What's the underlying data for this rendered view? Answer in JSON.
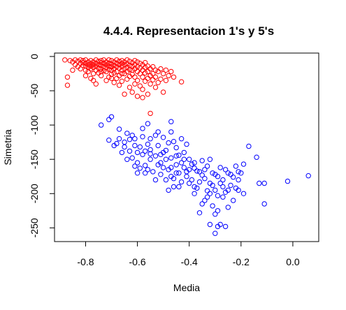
{
  "chart_data": {
    "type": "scatter",
    "title": "4.4.4. Representacion 1's y 5's",
    "xlabel": "Media",
    "ylabel": "Simetria",
    "xlim": [
      -0.92,
      0.1
    ],
    "ylim": [
      -270,
      5
    ],
    "xticks": [
      -0.8,
      -0.6,
      -0.4,
      -0.2,
      0.0
    ],
    "xtick_labels": [
      "-0.8",
      "-0.6",
      "-0.4",
      "-0.2",
      "0.0"
    ],
    "yticks": [
      0,
      -50,
      -100,
      -150,
      -200,
      -250
    ],
    "ytick_labels": [
      "0",
      "-50",
      "-100",
      "-150",
      "-200",
      "-250"
    ],
    "grid": false,
    "series": [
      {
        "color": "#ff0000",
        "marker": "open-circle",
        "points": [
          [
            -0.88,
            -5
          ],
          [
            -0.87,
            -30
          ],
          [
            -0.87,
            -42
          ],
          [
            -0.86,
            -6
          ],
          [
            -0.85,
            -8
          ],
          [
            -0.85,
            -20
          ],
          [
            -0.84,
            -5
          ],
          [
            -0.84,
            -12
          ],
          [
            -0.83,
            -7
          ],
          [
            -0.83,
            -15
          ],
          [
            -0.82,
            -5
          ],
          [
            -0.82,
            -10
          ],
          [
            -0.82,
            -18
          ],
          [
            -0.81,
            -6
          ],
          [
            -0.81,
            -9
          ],
          [
            -0.81,
            -13
          ],
          [
            -0.8,
            -5
          ],
          [
            -0.8,
            -10
          ],
          [
            -0.8,
            -20
          ],
          [
            -0.8,
            -28
          ],
          [
            -0.79,
            -8
          ],
          [
            -0.79,
            -12
          ],
          [
            -0.79,
            -16
          ],
          [
            -0.79,
            -22
          ],
          [
            -0.78,
            -6
          ],
          [
            -0.78,
            -10
          ],
          [
            -0.78,
            -14
          ],
          [
            -0.78,
            -18
          ],
          [
            -0.78,
            -32
          ],
          [
            -0.77,
            -8
          ],
          [
            -0.77,
            -12
          ],
          [
            -0.77,
            -16
          ],
          [
            -0.77,
            -25
          ],
          [
            -0.77,
            -35
          ],
          [
            -0.76,
            -5
          ],
          [
            -0.76,
            -10
          ],
          [
            -0.76,
            -14
          ],
          [
            -0.76,
            -20
          ],
          [
            -0.76,
            -40
          ],
          [
            -0.75,
            -7
          ],
          [
            -0.75,
            -12
          ],
          [
            -0.75,
            -17
          ],
          [
            -0.75,
            -24
          ],
          [
            -0.74,
            -6
          ],
          [
            -0.74,
            -9
          ],
          [
            -0.74,
            -13
          ],
          [
            -0.74,
            -18
          ],
          [
            -0.74,
            -28
          ],
          [
            -0.73,
            -5
          ],
          [
            -0.73,
            -10
          ],
          [
            -0.73,
            -15
          ],
          [
            -0.73,
            -21
          ],
          [
            -0.72,
            -8
          ],
          [
            -0.72,
            -12
          ],
          [
            -0.72,
            -16
          ],
          [
            -0.72,
            -22
          ],
          [
            -0.72,
            -35
          ],
          [
            -0.71,
            -5
          ],
          [
            -0.71,
            -10
          ],
          [
            -0.71,
            -14
          ],
          [
            -0.71,
            -19
          ],
          [
            -0.71,
            -30
          ],
          [
            -0.7,
            -6
          ],
          [
            -0.7,
            -11
          ],
          [
            -0.7,
            -15
          ],
          [
            -0.7,
            -20
          ],
          [
            -0.7,
            -26
          ],
          [
            -0.69,
            -8
          ],
          [
            -0.69,
            -13
          ],
          [
            -0.69,
            -18
          ],
          [
            -0.69,
            -24
          ],
          [
            -0.69,
            -38
          ],
          [
            -0.68,
            -5
          ],
          [
            -0.68,
            -10
          ],
          [
            -0.68,
            -15
          ],
          [
            -0.68,
            -22
          ],
          [
            -0.68,
            -32
          ],
          [
            -0.67,
            -7
          ],
          [
            -0.67,
            -12
          ],
          [
            -0.67,
            -17
          ],
          [
            -0.67,
            -28
          ],
          [
            -0.67,
            -42
          ],
          [
            -0.66,
            -6
          ],
          [
            -0.66,
            -10
          ],
          [
            -0.66,
            -14
          ],
          [
            -0.66,
            -20
          ],
          [
            -0.66,
            -36
          ],
          [
            -0.65,
            -8
          ],
          [
            -0.65,
            -12
          ],
          [
            -0.65,
            -18
          ],
          [
            -0.65,
            -25
          ],
          [
            -0.65,
            -55
          ],
          [
            -0.64,
            -5
          ],
          [
            -0.64,
            -11
          ],
          [
            -0.64,
            -16
          ],
          [
            -0.64,
            -22
          ],
          [
            -0.64,
            -33
          ],
          [
            -0.63,
            -7
          ],
          [
            -0.63,
            -13
          ],
          [
            -0.63,
            -19
          ],
          [
            -0.63,
            -29
          ],
          [
            -0.63,
            -45
          ],
          [
            -0.62,
            -9
          ],
          [
            -0.62,
            -14
          ],
          [
            -0.62,
            -20
          ],
          [
            -0.62,
            -26
          ],
          [
            -0.62,
            -52
          ],
          [
            -0.61,
            -6
          ],
          [
            -0.61,
            -12
          ],
          [
            -0.61,
            -18
          ],
          [
            -0.61,
            -30
          ],
          [
            -0.61,
            -40
          ],
          [
            -0.6,
            -8
          ],
          [
            -0.6,
            -15
          ],
          [
            -0.6,
            -22
          ],
          [
            -0.6,
            -35
          ],
          [
            -0.6,
            -58
          ],
          [
            -0.59,
            -10
          ],
          [
            -0.59,
            -17
          ],
          [
            -0.59,
            -25
          ],
          [
            -0.59,
            -43
          ],
          [
            -0.58,
            -12
          ],
          [
            -0.58,
            -20
          ],
          [
            -0.58,
            -30
          ],
          [
            -0.58,
            -48
          ],
          [
            -0.57,
            -9
          ],
          [
            -0.57,
            -16
          ],
          [
            -0.57,
            -24
          ],
          [
            -0.57,
            -36
          ],
          [
            -0.56,
            -14
          ],
          [
            -0.56,
            -22
          ],
          [
            -0.56,
            -32
          ],
          [
            -0.56,
            -55
          ],
          [
            -0.55,
            -18
          ],
          [
            -0.55,
            -28
          ],
          [
            -0.55,
            -40
          ],
          [
            -0.54,
            -15
          ],
          [
            -0.54,
            -25
          ],
          [
            -0.54,
            -34
          ],
          [
            -0.53,
            -20
          ],
          [
            -0.53,
            -30
          ],
          [
            -0.53,
            -45
          ],
          [
            -0.52,
            -22
          ],
          [
            -0.52,
            -38
          ],
          [
            -0.51,
            -18
          ],
          [
            -0.51,
            -33
          ],
          [
            -0.5,
            -25
          ],
          [
            -0.5,
            -52
          ],
          [
            -0.49,
            -20
          ],
          [
            -0.49,
            -35
          ],
          [
            -0.48,
            -28
          ],
          [
            -0.47,
            -22
          ],
          [
            -0.46,
            -30
          ],
          [
            -0.43,
            -37
          ],
          [
            -0.55,
            -83
          ],
          [
            -0.58,
            -60
          ],
          [
            -0.66,
            -25
          ],
          [
            -0.74,
            -22
          ],
          [
            -0.8,
            -14
          ],
          [
            -0.7,
            -32
          ]
        ]
      },
      {
        "color": "#0000ff",
        "marker": "open-circle",
        "points": [
          [
            -0.7,
            -88
          ],
          [
            -0.71,
            -92
          ],
          [
            -0.74,
            -100
          ],
          [
            -0.67,
            -106
          ],
          [
            -0.64,
            -112
          ],
          [
            -0.56,
            -98
          ],
          [
            -0.52,
            -110
          ],
          [
            -0.47,
            -95
          ],
          [
            -0.71,
            -122
          ],
          [
            -0.68,
            -127
          ],
          [
            -0.65,
            -125
          ],
          [
            -0.63,
            -121
          ],
          [
            -0.61,
            -130
          ],
          [
            -0.6,
            -140
          ],
          [
            -0.58,
            -117
          ],
          [
            -0.56,
            -128
          ],
          [
            -0.55,
            -136
          ],
          [
            -0.53,
            -115
          ],
          [
            -0.52,
            -130
          ],
          [
            -0.51,
            -143
          ],
          [
            -0.5,
            -118
          ],
          [
            -0.49,
            -137
          ],
          [
            -0.48,
            -126
          ],
          [
            -0.47,
            -148
          ],
          [
            -0.46,
            -124
          ],
          [
            -0.45,
            -133
          ],
          [
            -0.44,
            -144
          ],
          [
            -0.43,
            -120
          ],
          [
            -0.42,
            -140
          ],
          [
            -0.41,
            -128
          ],
          [
            -0.66,
            -140
          ],
          [
            -0.62,
            -148
          ],
          [
            -0.6,
            -155
          ],
          [
            -0.58,
            -143
          ],
          [
            -0.57,
            -159
          ],
          [
            -0.55,
            -150
          ],
          [
            -0.54,
            -168
          ],
          [
            -0.52,
            -158
          ],
          [
            -0.51,
            -172
          ],
          [
            -0.5,
            -162
          ],
          [
            -0.49,
            -180
          ],
          [
            -0.48,
            -165
          ],
          [
            -0.47,
            -175
          ],
          [
            -0.46,
            -190
          ],
          [
            -0.45,
            -158
          ],
          [
            -0.44,
            -170
          ],
          [
            -0.43,
            -183
          ],
          [
            -0.42,
            -162
          ],
          [
            -0.41,
            -175
          ],
          [
            -0.4,
            -150
          ],
          [
            -0.39,
            -180
          ],
          [
            -0.38,
            -163
          ],
          [
            -0.37,
            -192
          ],
          [
            -0.36,
            -168
          ],
          [
            -0.35,
            -152
          ],
          [
            -0.34,
            -178
          ],
          [
            -0.33,
            -160
          ],
          [
            -0.32,
            -185
          ],
          [
            -0.31,
            -170
          ],
          [
            -0.3,
            -195
          ],
          [
            -0.29,
            -175
          ],
          [
            -0.28,
            -162
          ],
          [
            -0.27,
            -180
          ],
          [
            -0.26,
            -198
          ],
          [
            -0.25,
            -170
          ],
          [
            -0.24,
            -188
          ],
          [
            -0.23,
            -176
          ],
          [
            -0.22,
            -192
          ],
          [
            -0.21,
            -180
          ],
          [
            -0.2,
            -170
          ],
          [
            -0.19,
            -200
          ],
          [
            -0.17,
            -131
          ],
          [
            -0.14,
            -147
          ],
          [
            -0.13,
            -185
          ],
          [
            -0.11,
            -185
          ],
          [
            -0.11,
            -215
          ],
          [
            -0.02,
            -182
          ],
          [
            0.06,
            -174
          ],
          [
            -0.19,
            -157
          ],
          [
            -0.21,
            -168
          ],
          [
            -0.28,
            -245
          ],
          [
            -0.3,
            -258
          ],
          [
            -0.29,
            -248
          ],
          [
            -0.32,
            -245
          ],
          [
            -0.26,
            -248
          ],
          [
            -0.3,
            -230
          ],
          [
            -0.29,
            -225
          ],
          [
            -0.35,
            -215
          ],
          [
            -0.33,
            -205
          ],
          [
            -0.38,
            -200
          ],
          [
            -0.38,
            -190
          ],
          [
            -0.27,
            -205
          ],
          [
            -0.25,
            -220
          ],
          [
            -0.31,
            -218
          ],
          [
            -0.36,
            -228
          ],
          [
            -0.34,
            -210
          ],
          [
            -0.32,
            -200
          ],
          [
            -0.4,
            -185
          ],
          [
            -0.46,
            -178
          ],
          [
            -0.44,
            -190
          ],
          [
            -0.53,
            -180
          ],
          [
            -0.57,
            -170
          ],
          [
            -0.59,
            -163
          ],
          [
            -0.61,
            -160
          ],
          [
            -0.64,
            -150
          ],
          [
            -0.69,
            -130
          ],
          [
            -0.67,
            -120
          ],
          [
            -0.62,
            -115
          ],
          [
            -0.58,
            -105
          ],
          [
            -0.55,
            -120
          ],
          [
            -0.5,
            -140
          ],
          [
            -0.47,
            -110
          ],
          [
            -0.45,
            -145
          ],
          [
            -0.42,
            -150
          ],
          [
            -0.4,
            -165
          ],
          [
            -0.38,
            -155
          ],
          [
            -0.36,
            -183
          ],
          [
            -0.34,
            -165
          ],
          [
            -0.32,
            -150
          ],
          [
            -0.3,
            -172
          ],
          [
            -0.28,
            -185
          ],
          [
            -0.26,
            -165
          ],
          [
            -0.24,
            -172
          ],
          [
            -0.22,
            -160
          ],
          [
            -0.21,
            -195
          ],
          [
            -0.23,
            -210
          ],
          [
            -0.25,
            -195
          ],
          [
            -0.27,
            -190
          ],
          [
            -0.29,
            -203
          ],
          [
            -0.31,
            -188
          ],
          [
            -0.33,
            -196
          ],
          [
            -0.35,
            -173
          ],
          [
            -0.37,
            -167
          ],
          [
            -0.39,
            -157
          ],
          [
            -0.41,
            -168
          ],
          [
            -0.43,
            -155
          ],
          [
            -0.45,
            -170
          ],
          [
            -0.47,
            -162
          ],
          [
            -0.49,
            -150
          ],
          [
            -0.51,
            -155
          ],
          [
            -0.53,
            -145
          ],
          [
            -0.55,
            -142
          ],
          [
            -0.57,
            -138
          ],
          [
            -0.59,
            -132
          ],
          [
            -0.61,
            -120
          ],
          [
            -0.63,
            -138
          ],
          [
            -0.65,
            -132
          ],
          [
            -0.6,
            -170
          ],
          [
            -0.56,
            -165
          ],
          [
            -0.48,
            -195
          ]
        ]
      }
    ]
  }
}
